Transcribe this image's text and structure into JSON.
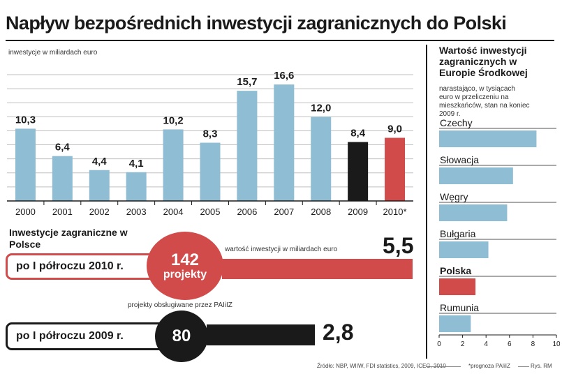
{
  "title": "Napływ bezpośrednich inwestycji zagranicznych do Polski",
  "colors": {
    "blue": "#8fbdd3",
    "black": "#1a1a1a",
    "red": "#d24b4b",
    "grid": "#bfbfbf"
  },
  "chart_data": [
    {
      "type": "bar",
      "title": "",
      "ylabel": "inwestycje w miliardach euro",
      "xlabel": "",
      "ylim": [
        0,
        18
      ],
      "categories": [
        "2000",
        "2001",
        "2002",
        "2003",
        "2004",
        "2005",
        "2006",
        "2007",
        "2008",
        "2009",
        "2010*"
      ],
      "values": [
        10.3,
        6.4,
        4.4,
        4.1,
        10.2,
        8.3,
        15.7,
        16.6,
        12.0,
        8.4,
        9.0
      ],
      "value_labels": [
        "10,3",
        "6,4",
        "4,4",
        "4,1",
        "10,2",
        "8,3",
        "15,7",
        "16,6",
        "12,0",
        "8,4",
        "9,0"
      ],
      "bar_colors": [
        "blue",
        "blue",
        "blue",
        "blue",
        "blue",
        "blue",
        "blue",
        "blue",
        "blue",
        "black",
        "red"
      ]
    },
    {
      "type": "bar",
      "orientation": "horizontal",
      "title": "Wartość inwestycji zagranicznych w Europie Środkowej",
      "subtitle": "narastająco, w tysiącach euro w przeliczeniu na mieszkańców, stan na koniec 2009 r.",
      "categories": [
        "Czechy",
        "Słowacja",
        "Węgry",
        "Bułgaria",
        "Polska",
        "Rumunia"
      ],
      "values": [
        8.3,
        6.3,
        5.8,
        4.2,
        3.1,
        2.7
      ],
      "highlight": "Polska",
      "xlim": [
        0,
        10
      ],
      "x_ticks": [
        "0",
        "2",
        "4",
        "6",
        "8",
        "10"
      ]
    },
    {
      "type": "bar",
      "orientation": "horizontal",
      "title": "Inwestycje zagraniczne w Polsce",
      "caption_value": "wartość inwestycji w miliardach euro",
      "caption_projects": "projekty obsługiwane przez PAIiIZ",
      "rows": [
        {
          "period": "po I półroczu 2010 r.",
          "projects": "142",
          "projects_label": "projekty",
          "value": 5.5,
          "value_label": "5,5",
          "color": "red"
        },
        {
          "period": "po I półroczu 2009 r.",
          "projects": "80",
          "value": 2.8,
          "value_label": "2,8",
          "color": "black"
        }
      ]
    }
  ],
  "footer": {
    "source": "Źródło: NBP, WIIW, FDI statistics, 2009, ICEG, 2010",
    "footnote": "*prognoza PAIiIZ",
    "credit": "Rys. RM"
  }
}
